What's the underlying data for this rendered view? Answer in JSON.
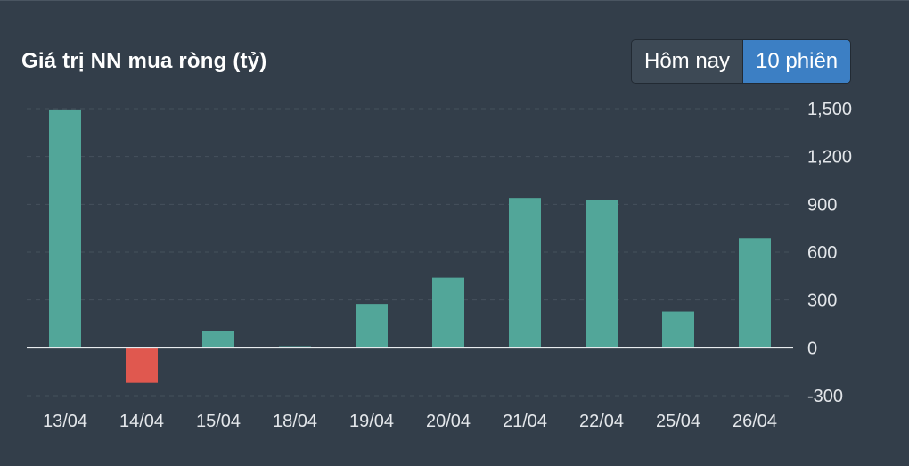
{
  "header": {
    "title": "Giá trị NN mua ròng (tỷ)"
  },
  "toggle": {
    "options": [
      "Hôm nay",
      "10 phiên"
    ],
    "selected_index": 1
  },
  "colors": {
    "positive": "#52a699",
    "negative": "#e0584f",
    "toggle_active": "#3c7fc4",
    "background": "#333e4a"
  },
  "chart_data": {
    "type": "bar",
    "title": "Giá trị NN mua ròng (tỷ)",
    "categories": [
      "13/04",
      "14/04",
      "15/04",
      "18/04",
      "19/04",
      "20/04",
      "21/04",
      "22/04",
      "25/04",
      "26/04"
    ],
    "values": [
      1495,
      -220,
      105,
      10,
      275,
      440,
      940,
      925,
      228,
      688
    ],
    "y_ticks": [
      {
        "value": 1500,
        "label": "1,500"
      },
      {
        "value": 1200,
        "label": "1,200"
      },
      {
        "value": 900,
        "label": "900"
      },
      {
        "value": 600,
        "label": "600"
      },
      {
        "value": 300,
        "label": "300"
      },
      {
        "value": 0,
        "label": "0"
      },
      {
        "value": -300,
        "label": "-300"
      }
    ],
    "ylim": [
      -300,
      1500
    ],
    "y_axis_position": "right",
    "grid": true,
    "legend": "none"
  }
}
